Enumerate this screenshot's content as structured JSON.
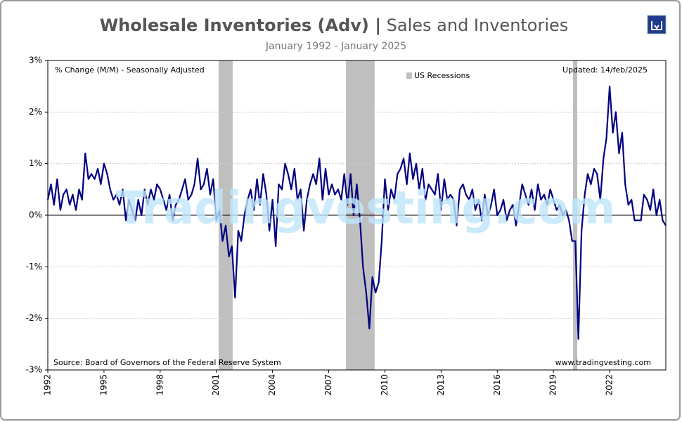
{
  "chart_data": {
    "type": "line",
    "title": "Wholesale Inventories (Adv) |",
    "title_sub": "Sales and Inventories",
    "subtitle": "January 1992 - January 2025",
    "note": "% Change (M/M)  - Seasonally Adjusted",
    "updated": "Updated: 14/feb/2025",
    "source": "Source: Board of Governors of the Federal Reserve System",
    "website": "www.tradingvesting.com",
    "watermark": "Tradingvesting.com",
    "recession_label": "US Recessions",
    "recession_color": "#bfbfbf",
    "recessions": [
      {
        "start": 2001.12,
        "end": 2001.87
      },
      {
        "start": 2007.92,
        "end": 2009.45
      },
      {
        "start": 2020.04,
        "end": 2020.27
      }
    ],
    "color": "#000080",
    "xlim": [
      1992,
      2025
    ],
    "xticks": [
      1992,
      1995,
      1998,
      2001,
      2004,
      2007,
      2010,
      2013,
      2016,
      2019,
      2022
    ],
    "ylim": [
      -3,
      3
    ],
    "yticks": [
      {
        "value": -3,
        "label": "-3%"
      },
      {
        "value": -2,
        "label": "-2%"
      },
      {
        "value": -1,
        "label": "-1%"
      },
      {
        "value": 0,
        "label": "0%"
      },
      {
        "value": 1,
        "label": "1%"
      },
      {
        "value": 2,
        "label": "2%"
      },
      {
        "value": 3,
        "label": "3%"
      }
    ],
    "grid": true,
    "x": [
      1992,
      1992.17,
      1992.33,
      1992.5,
      1992.67,
      1992.83,
      1993,
      1993.17,
      1993.33,
      1993.5,
      1993.67,
      1993.83,
      1994,
      1994.17,
      1994.33,
      1994.5,
      1994.67,
      1994.83,
      1995,
      1995.17,
      1995.33,
      1995.5,
      1995.67,
      1995.83,
      1996,
      1996.17,
      1996.33,
      1996.5,
      1996.67,
      1996.83,
      1997,
      1997.17,
      1997.33,
      1997.5,
      1997.67,
      1997.83,
      1998,
      1998.17,
      1998.33,
      1998.5,
      1998.67,
      1998.83,
      1999,
      1999.17,
      1999.33,
      1999.5,
      1999.67,
      1999.83,
      2000,
      2000.17,
      2000.33,
      2000.5,
      2000.67,
      2000.83,
      2001,
      2001.17,
      2001.33,
      2001.5,
      2001.67,
      2001.83,
      2002,
      2002.17,
      2002.33,
      2002.5,
      2002.67,
      2002.83,
      2003,
      2003.17,
      2003.33,
      2003.5,
      2003.67,
      2003.83,
      2004,
      2004.17,
      2004.33,
      2004.5,
      2004.67,
      2004.83,
      2005,
      2005.17,
      2005.33,
      2005.5,
      2005.67,
      2005.83,
      2006,
      2006.17,
      2006.33,
      2006.5,
      2006.67,
      2006.83,
      2007,
      2007.17,
      2007.33,
      2007.5,
      2007.67,
      2007.83,
      2008,
      2008.17,
      2008.33,
      2008.5,
      2008.67,
      2008.83,
      2009,
      2009.17,
      2009.33,
      2009.5,
      2009.67,
      2009.83,
      2010,
      2010.17,
      2010.33,
      2010.5,
      2010.67,
      2010.83,
      2011,
      2011.17,
      2011.33,
      2011.5,
      2011.67,
      2011.83,
      2012,
      2012.17,
      2012.33,
      2012.5,
      2012.67,
      2012.83,
      2013,
      2013.17,
      2013.33,
      2013.5,
      2013.67,
      2013.83,
      2014,
      2014.17,
      2014.33,
      2014.5,
      2014.67,
      2014.83,
      2015,
      2015.17,
      2015.33,
      2015.5,
      2015.67,
      2015.83,
      2016,
      2016.17,
      2016.33,
      2016.5,
      2016.67,
      2016.83,
      2017,
      2017.17,
      2017.33,
      2017.5,
      2017.67,
      2017.83,
      2018,
      2018.17,
      2018.33,
      2018.5,
      2018.67,
      2018.83,
      2019,
      2019.17,
      2019.33,
      2019.5,
      2019.67,
      2019.83,
      2020,
      2020.17,
      2020.33,
      2020.5,
      2020.67,
      2020.83,
      2021,
      2021.17,
      2021.33,
      2021.5,
      2021.67,
      2021.83,
      2022,
      2022.17,
      2022.33,
      2022.5,
      2022.67,
      2022.83,
      2023,
      2023.17,
      2023.33,
      2023.5,
      2023.67,
      2023.83,
      2024,
      2024.17,
      2024.33,
      2024.5,
      2024.67,
      2024.83,
      2025
    ],
    "values": [
      0.3,
      0.6,
      0.2,
      0.7,
      0.1,
      0.4,
      0.5,
      0.2,
      0.4,
      0.1,
      0.5,
      0.3,
      1.2,
      0.7,
      0.8,
      0.7,
      0.9,
      0.6,
      1.0,
      0.8,
      0.5,
      0.3,
      0.4,
      0.2,
      0.5,
      -0.1,
      0.3,
      0.1,
      -0.1,
      0.3,
      0.0,
      0.5,
      0.2,
      0.5,
      0.3,
      0.6,
      0.5,
      0.3,
      0.1,
      0.4,
      -0.1,
      0.2,
      0.3,
      0.5,
      0.7,
      0.3,
      0.4,
      0.6,
      1.1,
      0.5,
      0.6,
      0.9,
      0.4,
      0.7,
      -0.1,
      0.1,
      -0.5,
      -0.2,
      -0.8,
      -0.6,
      -1.6,
      -0.3,
      -0.5,
      0.0,
      0.3,
      0.5,
      0.1,
      0.7,
      0.2,
      0.8,
      0.4,
      -0.3,
      0.3,
      -0.6,
      0.6,
      0.5,
      1.0,
      0.8,
      0.5,
      0.9,
      0.3,
      0.5,
      -0.3,
      0.3,
      0.6,
      0.8,
      0.6,
      1.1,
      0.3,
      0.9,
      0.4,
      0.6,
      0.4,
      0.5,
      0.3,
      0.8,
      0.2,
      0.8,
      0.0,
      0.6,
      -0.1,
      -1.0,
      -1.5,
      -2.2,
      -1.2,
      -1.5,
      -1.3,
      -0.5,
      0.7,
      0.1,
      0.5,
      0.3,
      0.8,
      0.9,
      1.1,
      0.6,
      1.2,
      0.7,
      1.0,
      0.5,
      0.9,
      0.3,
      0.6,
      0.5,
      0.4,
      0.8,
      0.1,
      0.7,
      0.3,
      0.4,
      0.3,
      -0.2,
      0.5,
      0.6,
      0.4,
      0.3,
      0.5,
      0.1,
      0.3,
      -0.1,
      0.4,
      0.0,
      0.2,
      0.5,
      0.0,
      0.1,
      0.3,
      -0.1,
      0.1,
      0.2,
      -0.2,
      0.2,
      0.6,
      0.4,
      0.2,
      0.5,
      0.1,
      0.6,
      0.3,
      0.4,
      0.2,
      0.5,
      0.3,
      0.1,
      0.2,
      0.0,
      0.1,
      -0.1,
      -0.5,
      -0.5,
      -2.4,
      -0.3,
      0.4,
      0.8,
      0.6,
      0.9,
      0.8,
      0.3,
      1.1,
      1.5,
      2.5,
      1.6,
      2.0,
      1.2,
      1.6,
      0.6,
      0.2,
      0.3,
      -0.1,
      -0.1,
      -0.1,
      0.4,
      0.3,
      0.1,
      0.5,
      0.0,
      0.3,
      -0.1,
      -0.2
    ]
  }
}
